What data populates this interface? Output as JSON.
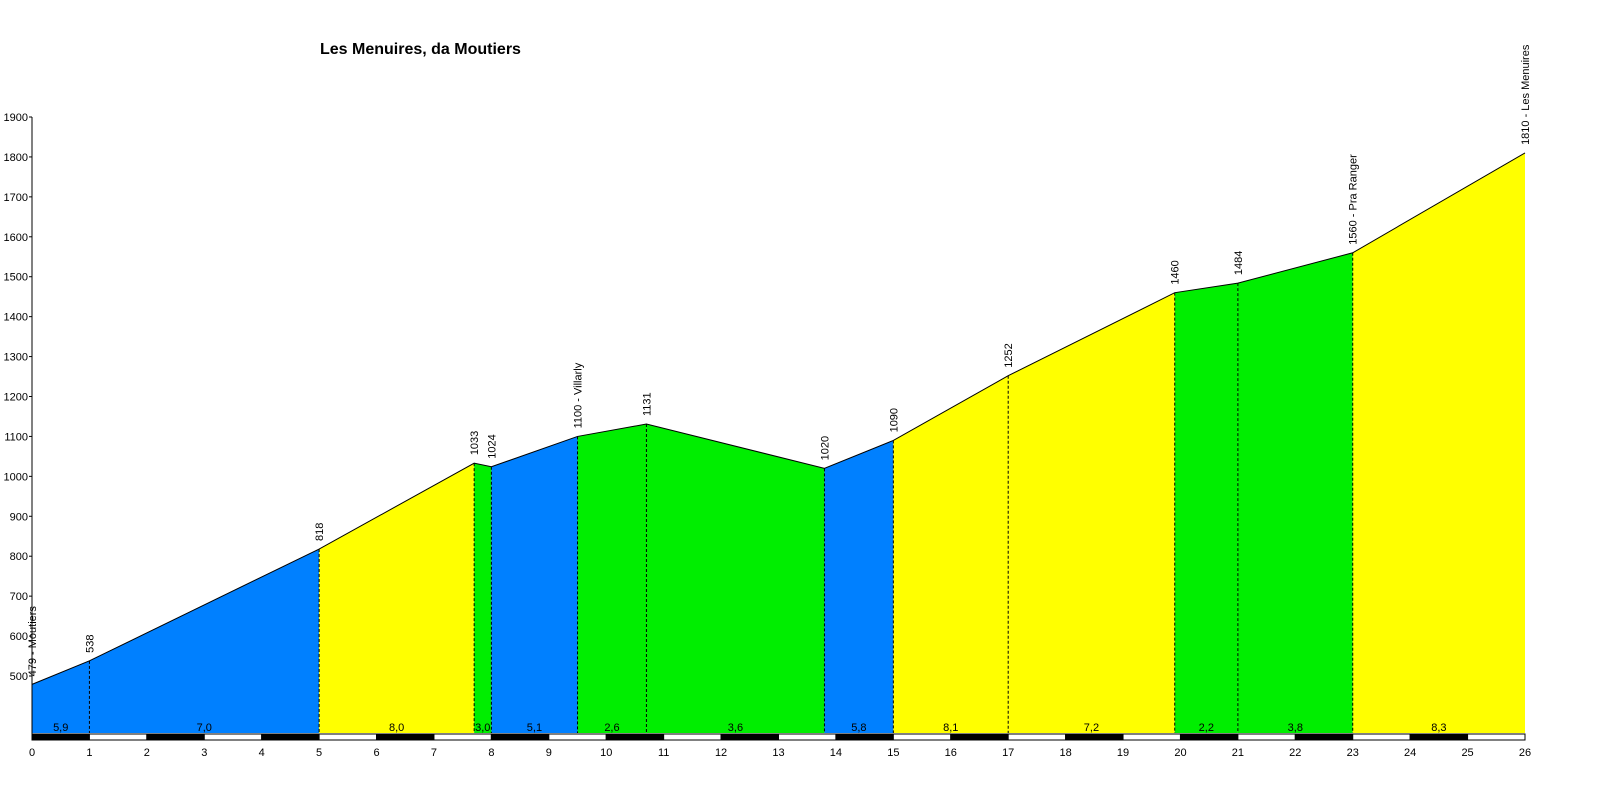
{
  "chart_data": {
    "type": "area",
    "title": "Les Menuires,  da Moutiers",
    "xlabel": "",
    "ylabel": "",
    "xlim": [
      0,
      26
    ],
    "ylim": [
      450,
      1900
    ],
    "x_ticks": [
      0,
      1,
      2,
      3,
      4,
      5,
      6,
      7,
      8,
      9,
      10,
      11,
      12,
      13,
      14,
      15,
      16,
      17,
      18,
      19,
      20,
      21,
      22,
      23,
      24,
      25,
      26
    ],
    "y_ticks": [
      500,
      600,
      700,
      800,
      900,
      1000,
      1100,
      1200,
      1300,
      1400,
      1500,
      1600,
      1700,
      1800,
      1900
    ],
    "grid": false,
    "colors": {
      "blue": "#0080ff",
      "yellow": "#ffff00",
      "green": "#00ee00",
      "outline": "#000000"
    },
    "points": [
      {
        "x": 0,
        "y": 479,
        "label": "479 - Moutiers"
      },
      {
        "x": 1,
        "y": 538,
        "label": "538"
      },
      {
        "x": 5,
        "y": 818,
        "label": "818"
      },
      {
        "x": 7.7,
        "y": 1033,
        "label": "1033"
      },
      {
        "x": 8,
        "y": 1024,
        "label": "1024"
      },
      {
        "x": 9.5,
        "y": 1100,
        "label": "1100 - Villarly"
      },
      {
        "x": 10.7,
        "y": 1131,
        "label": "1131"
      },
      {
        "x": 13.8,
        "y": 1020,
        "label": "1020"
      },
      {
        "x": 15,
        "y": 1090,
        "label": "1090"
      },
      {
        "x": 17,
        "y": 1252,
        "label": "1252"
      },
      {
        "x": 19.9,
        "y": 1460,
        "label": "1460"
      },
      {
        "x": 21,
        "y": 1484,
        "label": "1484"
      },
      {
        "x": 23,
        "y": 1560,
        "label": "1560 - Pra Ranger"
      },
      {
        "x": 26,
        "y": 1810,
        "label": "1810 - Les Menuires"
      }
    ],
    "segments": [
      {
        "from": 0,
        "to": 1,
        "color": "blue",
        "gradient": "5,9"
      },
      {
        "from": 1,
        "to": 5,
        "color": "blue",
        "gradient": "7,0"
      },
      {
        "from": 5,
        "to": 7.7,
        "color": "yellow",
        "gradient": "8,0"
      },
      {
        "from": 7.7,
        "to": 8,
        "color": "green",
        "gradient": "3,0"
      },
      {
        "from": 8,
        "to": 9.5,
        "color": "blue",
        "gradient": "5,1"
      },
      {
        "from": 9.5,
        "to": 10.7,
        "color": "green",
        "gradient": "2,6"
      },
      {
        "from": 10.7,
        "to": 13.8,
        "color": "green",
        "gradient": "3,6"
      },
      {
        "from": 13.8,
        "to": 15,
        "color": "blue",
        "gradient": "5,8"
      },
      {
        "from": 15,
        "to": 17,
        "color": "yellow",
        "gradient": "8,1"
      },
      {
        "from": 17,
        "to": 19.9,
        "color": "yellow",
        "gradient": "7,2"
      },
      {
        "from": 19.9,
        "to": 21,
        "color": "green",
        "gradient": "2,2"
      },
      {
        "from": 21,
        "to": 23,
        "color": "green",
        "gradient": "3,8"
      },
      {
        "from": 23,
        "to": 26,
        "color": "yellow",
        "gradient": "8,3"
      }
    ]
  }
}
